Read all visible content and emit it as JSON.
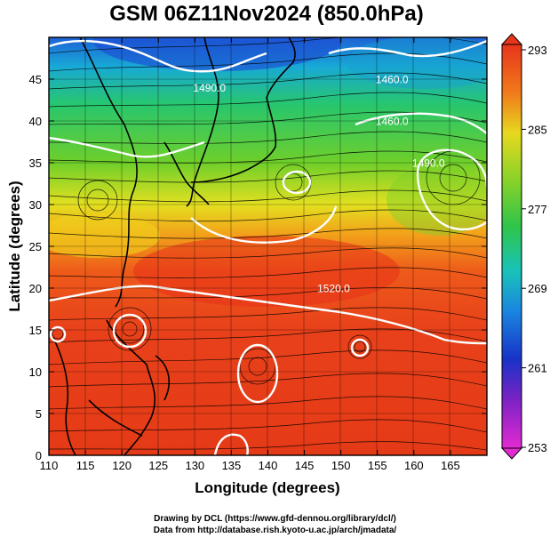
{
  "title": "GSM 06Z11Nov2024 (850.0hPa)",
  "footer": {
    "line1": "Drawing by DCL (https://www.gfd-dennou.org/library/dcl/)",
    "line2": "Data from http://database.rish.kyoto-u.ac.jp/arch/jmadata/"
  },
  "chart_data": {
    "type": "heatmap",
    "xlabel": "Longitude (degrees)",
    "ylabel": "Latitude  (degrees)",
    "xlim": [
      110,
      170
    ],
    "ylim": [
      0,
      50
    ],
    "xticks": [
      110,
      115,
      120,
      125,
      130,
      135,
      140,
      145,
      150,
      155,
      160,
      165
    ],
    "yticks": [
      0,
      5,
      10,
      15,
      20,
      25,
      30,
      35,
      40,
      45
    ],
    "colorbar": {
      "ticks": [
        293,
        285,
        277,
        269,
        261,
        253
      ],
      "range": [
        253,
        293
      ]
    },
    "contour_labels": [
      {
        "text": "1520.0",
        "lon": 149,
        "lat": 19.5
      },
      {
        "text": "1490.0",
        "lon": 132,
        "lat": 43.5
      },
      {
        "text": "1490.0",
        "lon": 162,
        "lat": 34.5
      },
      {
        "text": "1460.0",
        "lon": 157,
        "lat": 44.5
      },
      {
        "text": "1460.0",
        "lon": 157,
        "lat": 39.5
      }
    ],
    "colors": {
      "warm": "#e53a17",
      "mid": "#3fbf2c",
      "cold": "#1d5ad8",
      "contour": "#ffffff"
    }
  }
}
